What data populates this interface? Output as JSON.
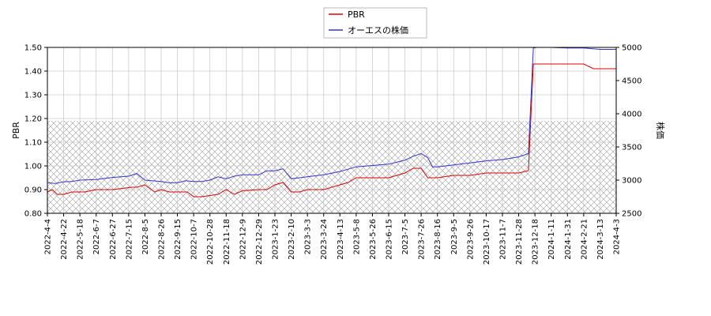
{
  "chart_data": {
    "type": "line",
    "legend": [
      "PBR",
      "オーエスの株価"
    ],
    "legend_placement": "top-center",
    "grid": true,
    "hatched_band": {
      "y_left": [
        0.8,
        1.19
      ]
    },
    "left_axis": {
      "label": "PBR",
      "ylim": [
        0.8,
        1.5
      ],
      "ticks": [
        "0.80",
        "0.90",
        "1.00",
        "1.10",
        "1.20",
        "1.30",
        "1.40",
        "1.50"
      ]
    },
    "right_axis": {
      "label": "株価",
      "ylim": [
        2500,
        5000
      ],
      "ticks": [
        "2500",
        "3000",
        "3500",
        "4000",
        "4500",
        "5000"
      ]
    },
    "x_tick_labels": [
      "2022-4-4",
      "2022-4-22",
      "2022-5-18",
      "2022-6-7",
      "2022-6-27",
      "2022-7-15",
      "2022-8-5",
      "2022-8-26",
      "2022-9-15",
      "2022-10-7",
      "2022-10-28",
      "2022-11-18",
      "2022-12-9",
      "2022-12-29",
      "2023-1-23",
      "2023-2-10",
      "2023-3-3",
      "2023-3-24",
      "2023-4-13",
      "2023-5-8",
      "2023-5-26",
      "2023-6-15",
      "2023-7-5",
      "2023-7-26",
      "2023-8-16",
      "2023-9-5",
      "2023-9-26",
      "2023-10-17",
      "2023-11-7",
      "2023-11-28",
      "2023-12-18",
      "2024-1-11",
      "2024-1-31",
      "2024-2-21",
      "2024-3-13",
      "2024-4-3"
    ],
    "series": [
      {
        "name": "PBR",
        "axis": "left",
        "color": "#dd0000",
        "x": [
          0,
          0.3,
          0.6,
          1,
          1.5,
          2,
          2.3,
          3,
          4,
          4.6,
          5.2,
          5.5,
          6,
          6.6,
          7,
          7.5,
          8,
          8.6,
          9,
          9.5,
          10,
          10.5,
          11,
          11.5,
          12,
          13,
          13.5,
          14,
          14.5,
          15,
          15.5,
          16,
          16.5,
          17,
          17.5,
          18,
          18.5,
          19,
          20,
          21,
          21.5,
          22,
          22.5,
          23,
          23.4,
          23.8,
          24,
          25,
          26,
          27,
          28,
          29,
          29.6,
          29.9,
          30.2,
          31,
          32,
          33,
          33.6,
          34,
          35
        ],
        "values": [
          0.89,
          0.9,
          0.88,
          0.88,
          0.89,
          0.89,
          0.89,
          0.9,
          0.9,
          0.905,
          0.91,
          0.91,
          0.92,
          0.89,
          0.9,
          0.89,
          0.89,
          0.89,
          0.87,
          0.87,
          0.875,
          0.88,
          0.9,
          0.88,
          0.895,
          0.9,
          0.9,
          0.92,
          0.93,
          0.89,
          0.89,
          0.9,
          0.9,
          0.9,
          0.91,
          0.92,
          0.93,
          0.95,
          0.95,
          0.95,
          0.96,
          0.97,
          0.99,
          0.99,
          0.95,
          0.95,
          0.95,
          0.96,
          0.96,
          0.97,
          0.97,
          0.97,
          0.98,
          1.43,
          1.43,
          1.43,
          1.43,
          1.43,
          1.41,
          1.41,
          1.41
        ]
      },
      {
        "name": "オーエスの株価",
        "axis": "right",
        "color": "#3333cc",
        "x": [
          0,
          0.5,
          1,
          1.5,
          2,
          3,
          4,
          5,
          5.5,
          6,
          7,
          7.5,
          8,
          8.5,
          9,
          9.5,
          10,
          10.5,
          11,
          11.5,
          12,
          13,
          13.5,
          14,
          14.5,
          15,
          16,
          17,
          18,
          19,
          20,
          21,
          22,
          22.5,
          23,
          23.4,
          23.7,
          24,
          25,
          26,
          27,
          28,
          29,
          29.6,
          29.9,
          30.1,
          31,
          32,
          33,
          34,
          35
        ],
        "values": [
          2960,
          2950,
          2975,
          2980,
          3000,
          3010,
          3040,
          3060,
          3100,
          3000,
          2980,
          2960,
          2960,
          2990,
          2980,
          2980,
          3000,
          3050,
          3020,
          3060,
          3080,
          3080,
          3140,
          3140,
          3170,
          3020,
          3050,
          3080,
          3130,
          3200,
          3220,
          3240,
          3300,
          3360,
          3400,
          3340,
          3200,
          3200,
          3230,
          3260,
          3290,
          3310,
          3350,
          3400,
          4990,
          5000,
          5000,
          4990,
          4990,
          4970,
          4970
        ]
      }
    ]
  }
}
